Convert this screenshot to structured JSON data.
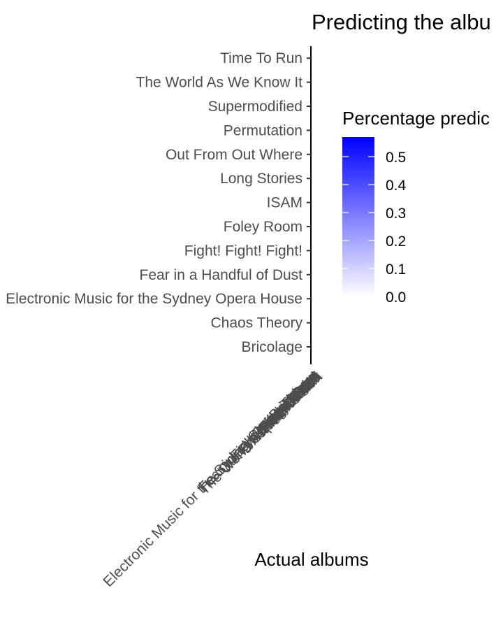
{
  "chart_data": {
    "type": "heatmap",
    "title": "Predicting the albu",
    "xlabel": "Actual albums",
    "ylabel": "",
    "y_categories": [
      "Bricolage",
      "Chaos Theory",
      "Electronic Music for the Sydney Opera House",
      "Fear in a Handful of Dust",
      "Fight! Fight! Fight!",
      "Foley Room",
      "ISAM",
      "Long Stories",
      "Out From Out Where",
      "Permutation",
      "Supermodified",
      "The World As We Know It",
      "Time To Run"
    ],
    "x_categories": [
      "Bricolage",
      "Chaos Theory",
      "Electronic Music for the Sydney Opera House",
      "Fear in a Handful of Dust",
      "Fight! Fight! Fight!",
      "Foley Room",
      "ISAM",
      "Long Stories",
      "Out From Out Where",
      "Permutation",
      "Supermodified",
      "The World As We Know It",
      "Time To Run"
    ],
    "legend": {
      "title": "Percentage predic",
      "low_color": "#ffffff",
      "high_color": "#0000ff",
      "range": [
        0,
        0.57
      ],
      "breaks": [
        "0.0",
        "0.1",
        "0.2",
        "0.3",
        "0.4",
        "0.5"
      ],
      "placement": "right"
    },
    "grid": false
  }
}
